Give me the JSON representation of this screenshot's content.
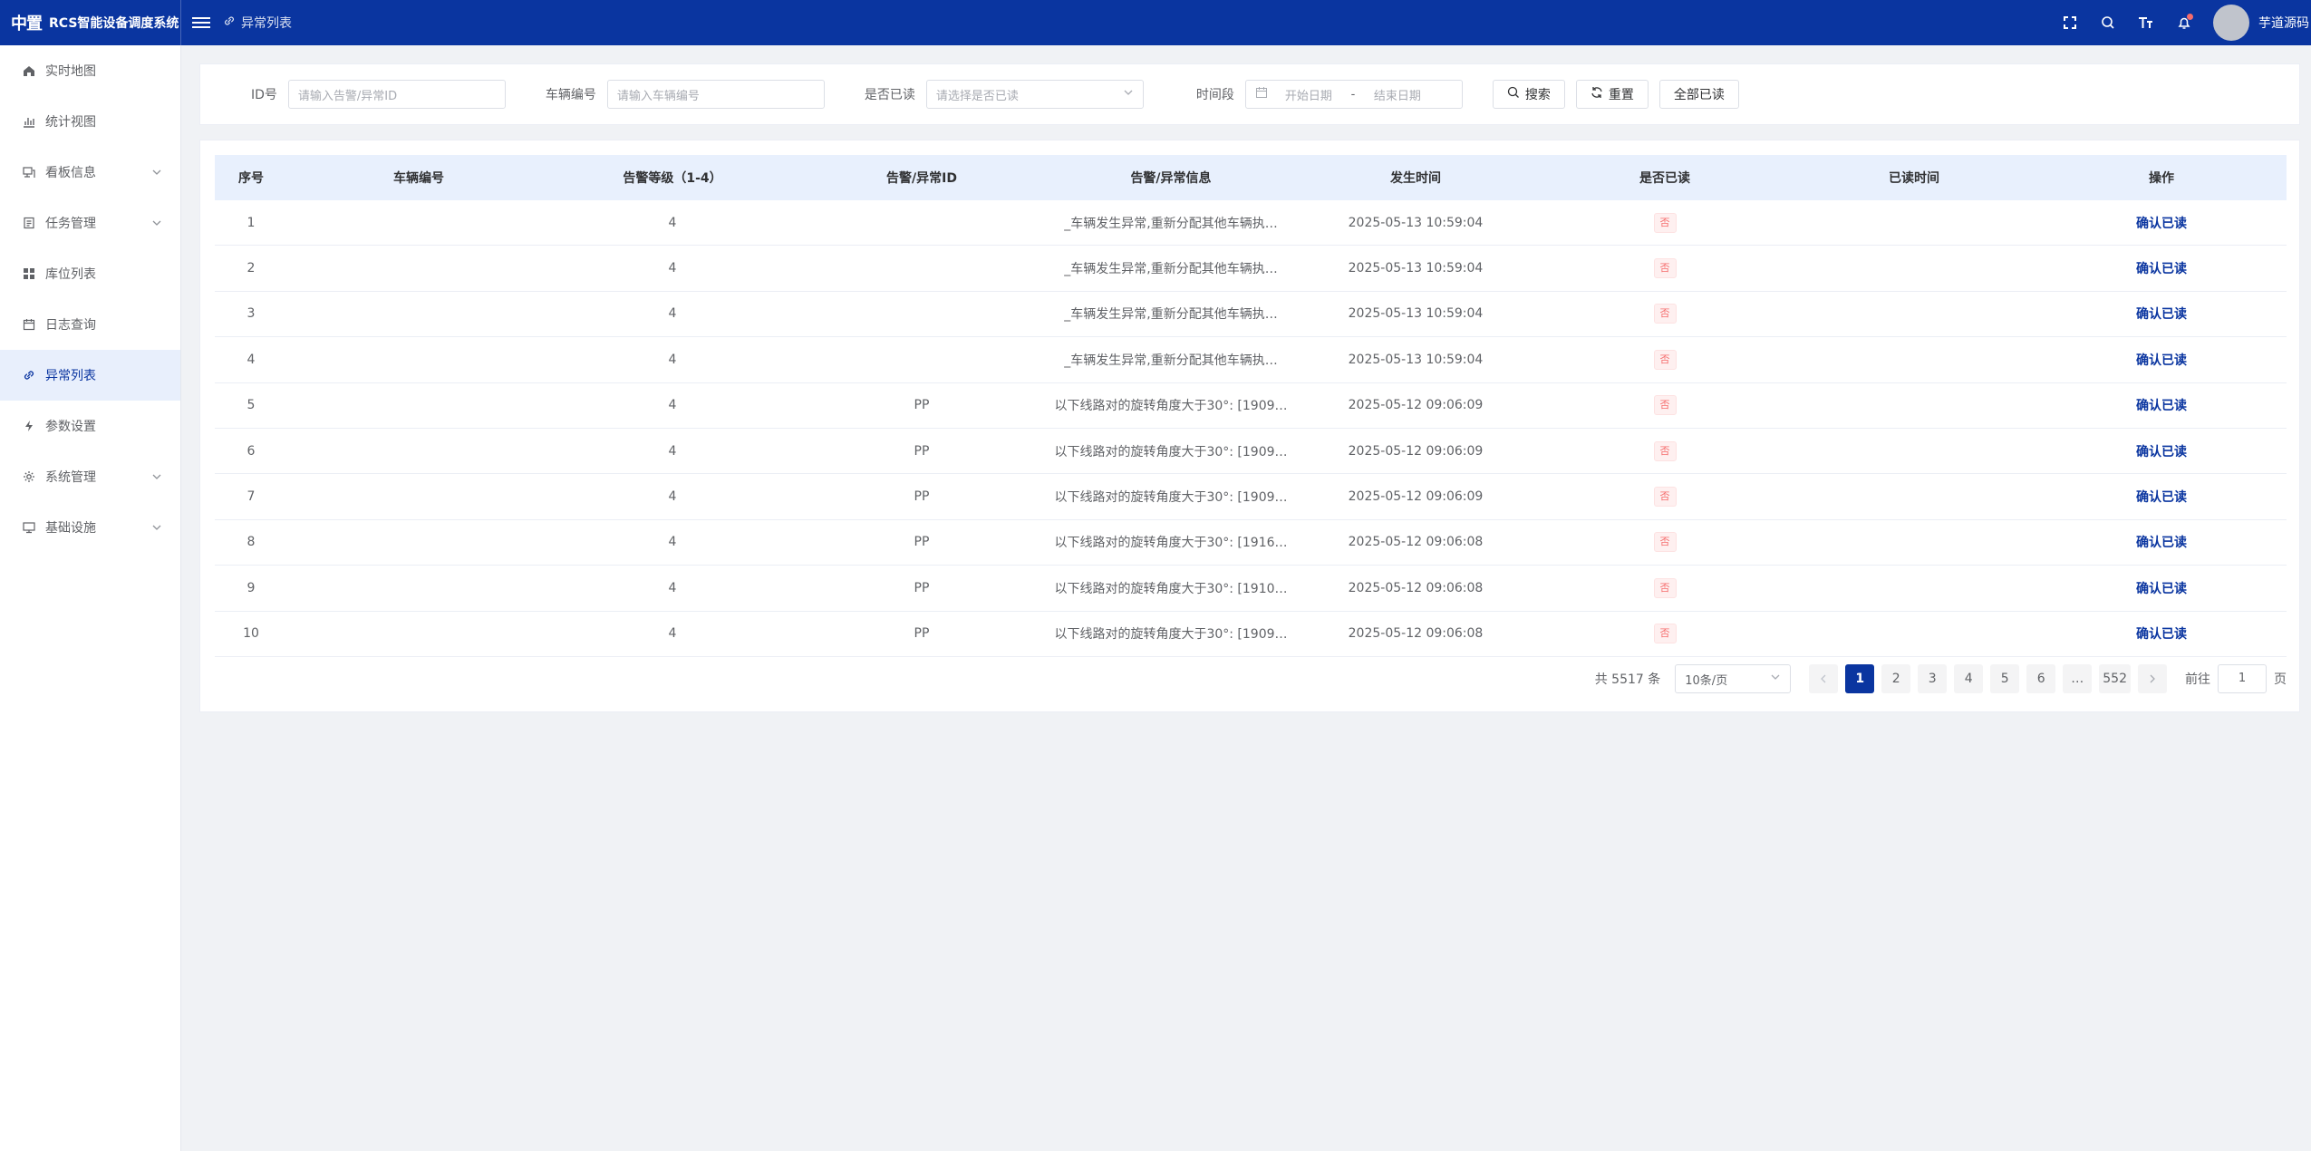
{
  "app": {
    "logo": "中置",
    "title": "RCS智能设备调度系统"
  },
  "breadcrumb": {
    "current": "异常列表"
  },
  "user": {
    "name": "芋道源码"
  },
  "sidebar": {
    "items": [
      {
        "label": "实时地图",
        "icon": "home-icon",
        "has_children": false,
        "active": false
      },
      {
        "label": "统计视图",
        "icon": "bar-chart-icon",
        "has_children": false,
        "active": false
      },
      {
        "label": "看板信息",
        "icon": "dashboard-icon",
        "has_children": true,
        "active": false
      },
      {
        "label": "任务管理",
        "icon": "task-icon",
        "has_children": true,
        "active": false
      },
      {
        "label": "库位列表",
        "icon": "grid-icon",
        "has_children": false,
        "active": false
      },
      {
        "label": "日志查询",
        "icon": "calendar-icon",
        "has_children": false,
        "active": false
      },
      {
        "label": "异常列表",
        "icon": "link-icon",
        "has_children": false,
        "active": true
      },
      {
        "label": "参数设置",
        "icon": "lightning-icon",
        "has_children": false,
        "active": false
      },
      {
        "label": "系统管理",
        "icon": "gear-icon",
        "has_children": true,
        "active": false
      },
      {
        "label": "基础设施",
        "icon": "monitor-icon",
        "has_children": true,
        "active": false
      }
    ]
  },
  "filters": {
    "id": {
      "label": "ID号",
      "placeholder": "请输入告警/异常ID"
    },
    "vehicle": {
      "label": "车辆编号",
      "placeholder": "请输入车辆编号"
    },
    "read": {
      "label": "是否已读",
      "placeholder": "请选择是否已读"
    },
    "time": {
      "label": "时间段",
      "start_placeholder": "开始日期",
      "separator": "-",
      "end_placeholder": "结束日期"
    },
    "buttons": {
      "search": "搜索",
      "reset": "重置",
      "read_all": "全部已读"
    }
  },
  "table": {
    "columns": [
      "序号",
      "车辆编号",
      "告警等级（1-4）",
      "告警/异常ID",
      "告警/异常信息",
      "发生时间",
      "是否已读",
      "已读时间",
      "操作"
    ],
    "rows": [
      {
        "index": "1",
        "vehicle": "",
        "level": "4",
        "alarm_id": "",
        "message": "_车辆发生异常,重新分配其他车辆执…",
        "time": "2025-05-13 10:59:04",
        "read": "否",
        "read_time": "",
        "action": "确认已读"
      },
      {
        "index": "2",
        "vehicle": "",
        "level": "4",
        "alarm_id": "",
        "message": "_车辆发生异常,重新分配其他车辆执…",
        "time": "2025-05-13 10:59:04",
        "read": "否",
        "read_time": "",
        "action": "确认已读"
      },
      {
        "index": "3",
        "vehicle": "",
        "level": "4",
        "alarm_id": "",
        "message": "_车辆发生异常,重新分配其他车辆执…",
        "time": "2025-05-13 10:59:04",
        "read": "否",
        "read_time": "",
        "action": "确认已读"
      },
      {
        "index": "4",
        "vehicle": "",
        "level": "4",
        "alarm_id": "",
        "message": "_车辆发生异常,重新分配其他车辆执…",
        "time": "2025-05-13 10:59:04",
        "read": "否",
        "read_time": "",
        "action": "确认已读"
      },
      {
        "index": "5",
        "vehicle": "",
        "level": "4",
        "alarm_id": "PP",
        "message": "以下线路对的旋转角度大于30°: [1909…",
        "time": "2025-05-12 09:06:09",
        "read": "否",
        "read_time": "",
        "action": "确认已读"
      },
      {
        "index": "6",
        "vehicle": "",
        "level": "4",
        "alarm_id": "PP",
        "message": "以下线路对的旋转角度大于30°: [1909…",
        "time": "2025-05-12 09:06:09",
        "read": "否",
        "read_time": "",
        "action": "确认已读"
      },
      {
        "index": "7",
        "vehicle": "",
        "level": "4",
        "alarm_id": "PP",
        "message": "以下线路对的旋转角度大于30°: [1909…",
        "time": "2025-05-12 09:06:09",
        "read": "否",
        "read_time": "",
        "action": "确认已读"
      },
      {
        "index": "8",
        "vehicle": "",
        "level": "4",
        "alarm_id": "PP",
        "message": "以下线路对的旋转角度大于30°: [1916…",
        "time": "2025-05-12 09:06:08",
        "read": "否",
        "read_time": "",
        "action": "确认已读"
      },
      {
        "index": "9",
        "vehicle": "",
        "level": "4",
        "alarm_id": "PP",
        "message": "以下线路对的旋转角度大于30°: [1910…",
        "time": "2025-05-12 09:06:08",
        "read": "否",
        "read_time": "",
        "action": "确认已读"
      },
      {
        "index": "10",
        "vehicle": "",
        "level": "4",
        "alarm_id": "PP",
        "message": "以下线路对的旋转角度大于30°: [1909…",
        "time": "2025-05-12 09:06:08",
        "read": "否",
        "read_time": "",
        "action": "确认已读"
      }
    ]
  },
  "pagination": {
    "total_text": "共 5517 条",
    "page_size": "10条/页",
    "pages": [
      "1",
      "2",
      "3",
      "4",
      "5",
      "6",
      "…",
      "552"
    ],
    "current": "1",
    "goto_label": "前往",
    "goto_value": "1",
    "page_suffix": "页"
  },
  "colors": {
    "primary": "#0a35a0",
    "active_bg": "#e8effc",
    "danger": "#f56c6c",
    "header_row": "#e8f0fd"
  }
}
